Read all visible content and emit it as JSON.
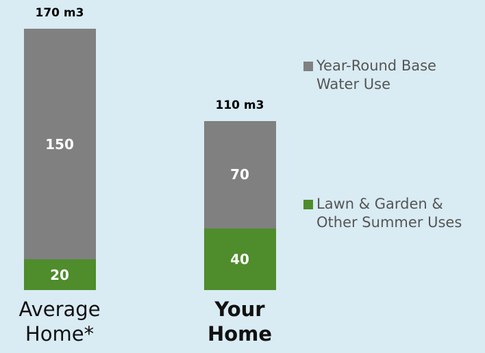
{
  "chart_data": {
    "type": "stacked_bar",
    "categories": [
      "Average Home*",
      "Your Home"
    ],
    "emphasized_category": 1,
    "total_labels": [
      "170 m3",
      "110 m3"
    ],
    "series": [
      {
        "name": "Lawn & Garden & Other Summer Uses",
        "color": "#4e8c2c",
        "values": [
          20,
          40
        ]
      },
      {
        "name": "Year-Round Base Water Use",
        "color": "#808080",
        "values": [
          150,
          70
        ]
      }
    ],
    "legend": "right"
  }
}
